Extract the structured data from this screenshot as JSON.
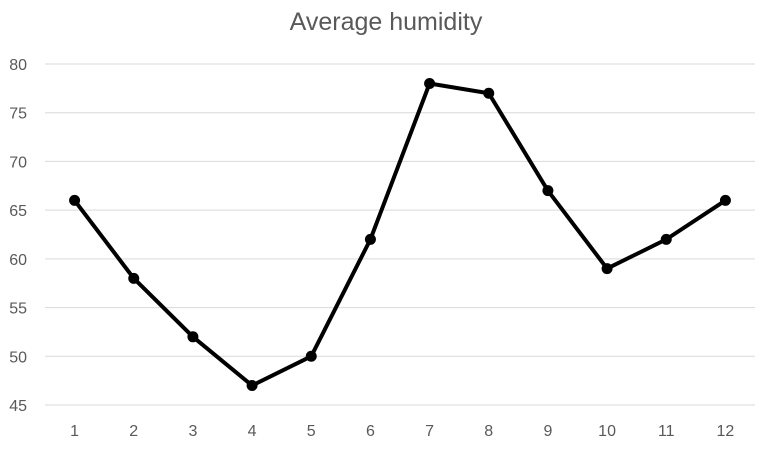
{
  "chart_data": {
    "type": "line",
    "title": "Average humidity",
    "xlabel": "",
    "ylabel": "",
    "categories": [
      "1",
      "2",
      "3",
      "4",
      "5",
      "6",
      "7",
      "8",
      "9",
      "10",
      "11",
      "12"
    ],
    "series": [
      {
        "values": [
          66,
          58,
          52,
          47,
          50,
          62,
          78,
          77,
          67,
          59,
          62,
          66
        ],
        "color": "#000000"
      }
    ],
    "ylim": [
      45,
      80
    ],
    "yticks": [
      45,
      50,
      55,
      60,
      65,
      70,
      75,
      80
    ],
    "grid": true,
    "legend": "none"
  }
}
